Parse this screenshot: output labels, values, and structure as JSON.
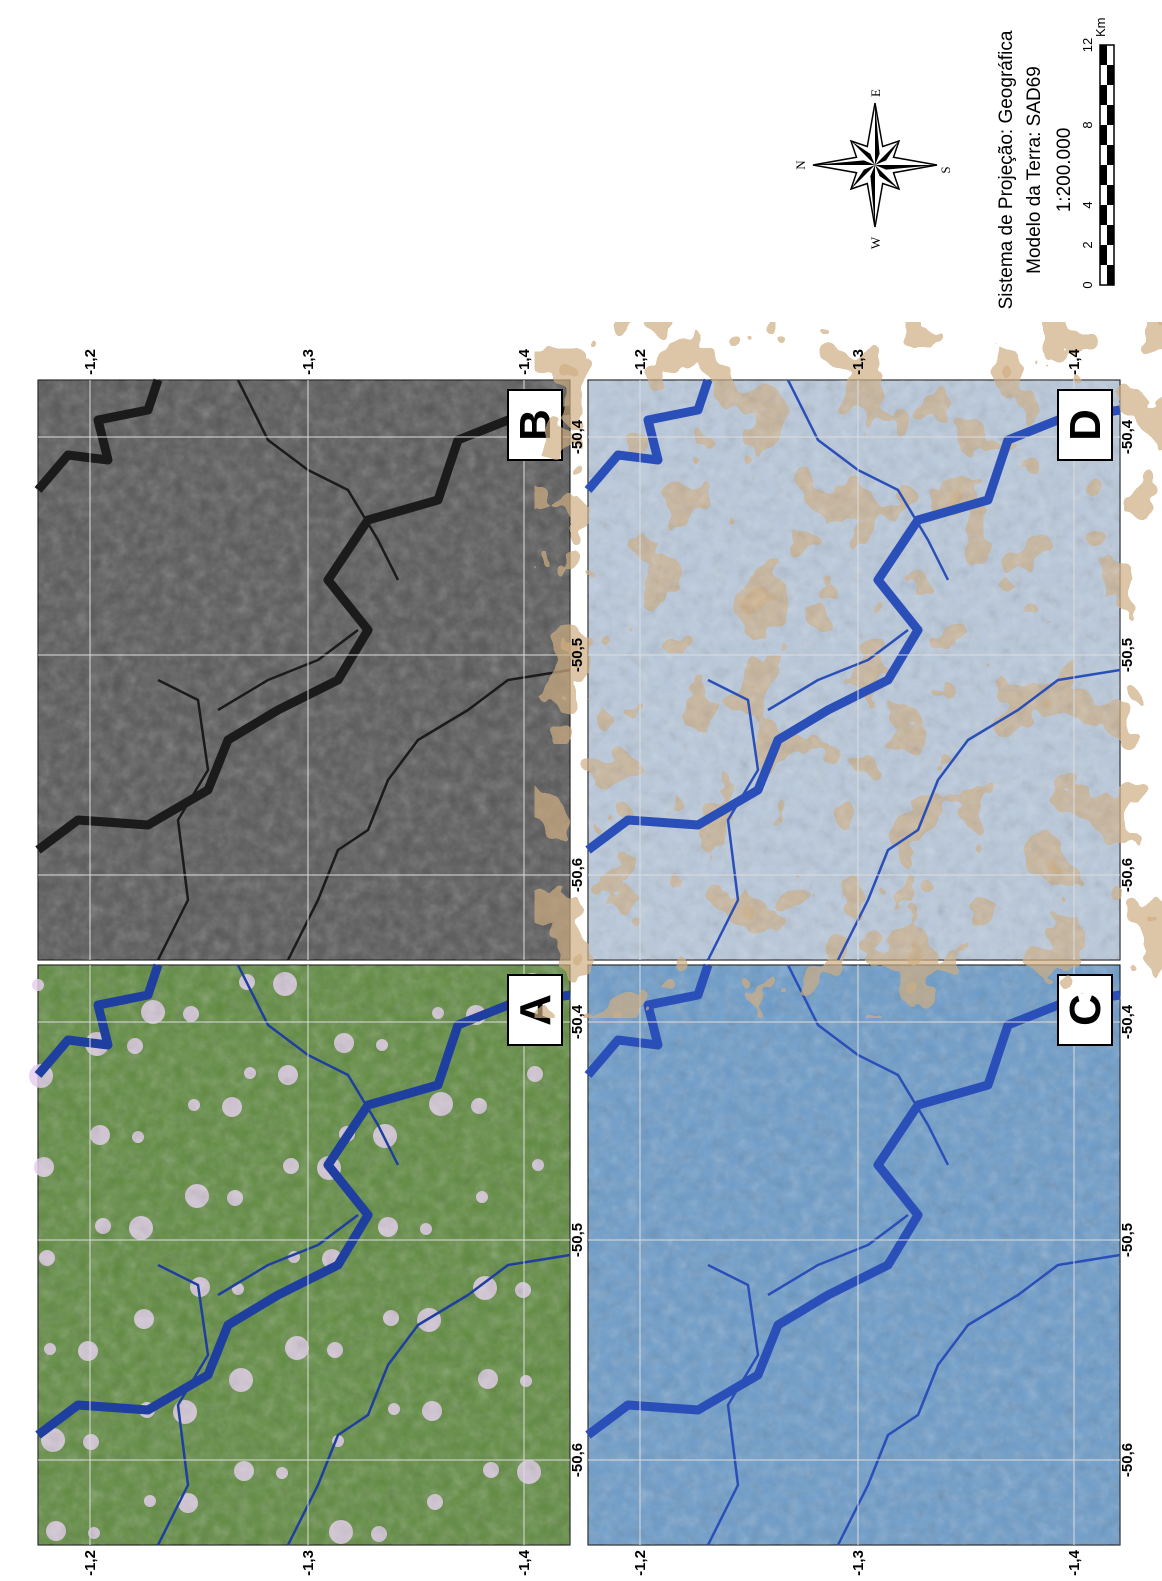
{
  "panels": [
    {
      "label": "A"
    },
    {
      "label": "B"
    },
    {
      "label": "C"
    },
    {
      "label": "D"
    }
  ],
  "latitude_labels": [
    "-1,2",
    "-1,3",
    "-1,4"
  ],
  "longitude_labels": [
    "-50,6",
    "-50,5",
    "-50,4"
  ],
  "legend": {
    "projection": "Sistema de Projeção: Geográfica",
    "datum": "Modelo da Terra: SAD69",
    "scale": "1:200.000"
  },
  "scale_bar": {
    "labels": [
      0,
      2,
      4,
      8,
      12
    ],
    "unit": "Km"
  },
  "compass": {
    "north": "N",
    "east": "E",
    "south": "S",
    "west": "W"
  }
}
